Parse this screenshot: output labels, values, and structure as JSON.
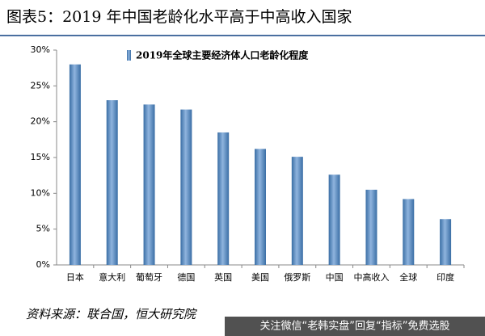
{
  "chart_data": {
    "type": "bar",
    "title": "图表5：2019 年中国老龄化水平高于中高收入国家",
    "series": [
      {
        "name": "2019年全球主要经济体人口老龄化程度",
        "color": "#4f81bd",
        "values": [
          28,
          23,
          22.4,
          21.7,
          18.5,
          16.2,
          15.1,
          12.6,
          10.5,
          9.2,
          6.4
        ]
      }
    ],
    "categories": [
      "日本",
      "意大利",
      "葡萄牙",
      "德国",
      "英国",
      "美国",
      "俄罗斯",
      "中国",
      "中高收入",
      "全球",
      "印度"
    ],
    "ylim": [
      0,
      30
    ],
    "yticks": [
      {
        "value": 0,
        "label": "0%"
      },
      {
        "value": 5,
        "label": "5%"
      },
      {
        "value": 10,
        "label": "10%"
      },
      {
        "value": 15,
        "label": "15%"
      },
      {
        "value": 20,
        "label": "20%"
      },
      {
        "value": 25,
        "label": "25%"
      },
      {
        "value": 30,
        "label": "30%"
      }
    ],
    "source": "资料来源：联合国，恒大研究院",
    "watermark": "关注微信“老韩实盘”回复“指标”免费选股"
  }
}
